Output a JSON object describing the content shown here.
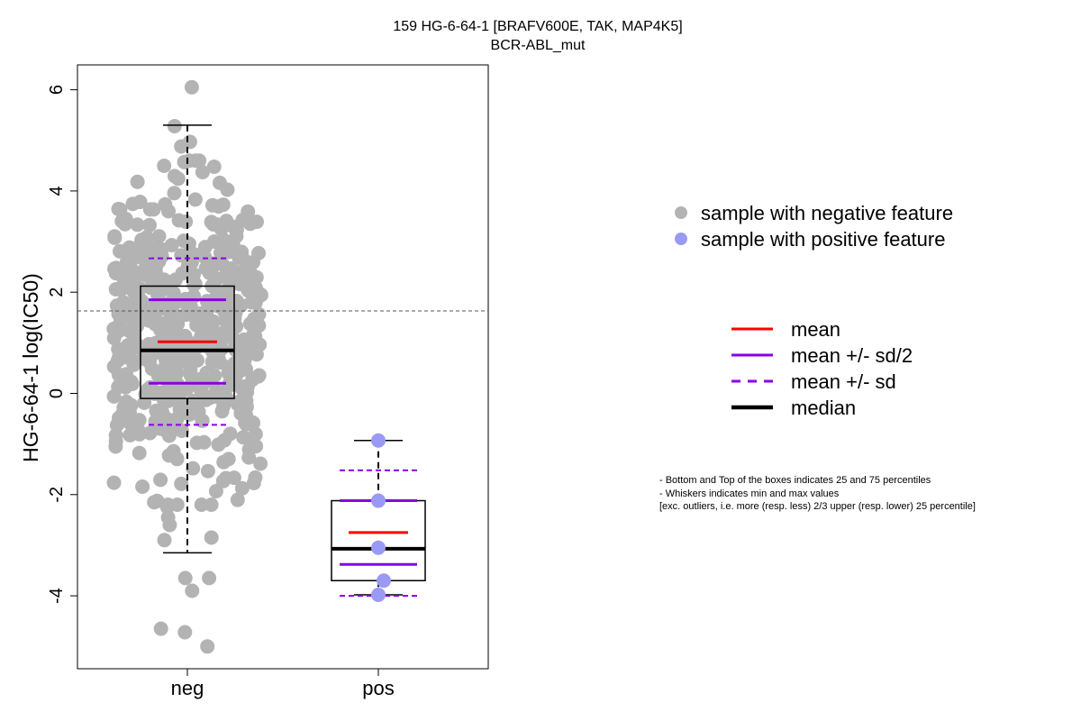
{
  "chart_data": {
    "type": "boxplot",
    "title": "159 HG-6-64-1 [BRAFV600E, TAK, MAP4K5]",
    "subtitle": "BCR-ABL_mut",
    "ylabel": "HG-6-64-1 log(IC50)",
    "ylim": [
      -5.4,
      6.5
    ],
    "yticks": [
      -4,
      -2,
      0,
      2,
      4,
      6
    ],
    "categories": [
      "neg",
      "pos"
    ],
    "reference_line": 1.63,
    "groups": [
      {
        "name": "neg",
        "point_color": "#b3b3b3",
        "whisker_low": -3.15,
        "q1": -0.1,
        "median": 0.85,
        "q3": 2.12,
        "whisker_high": 5.3,
        "mean": 1.02,
        "mean_minus_half_sd": 0.2,
        "mean_plus_half_sd": 1.85,
        "mean_minus_sd": -0.62,
        "mean_plus_sd": 2.67,
        "extra_points": [
          6.05,
          5.28,
          4.97,
          4.88,
          -3.65,
          -3.65,
          -3.9,
          -4.65,
          -4.72,
          -5.0,
          -2.85,
          -2.9,
          -2.6,
          -2.45,
          -2.25,
          -2.2,
          -2.15
        ],
        "n_points": 520
      },
      {
        "name": "pos",
        "point_color": "#9a9af5",
        "whisker_low": -3.98,
        "q1": -3.7,
        "median": -3.07,
        "q3": -2.12,
        "whisker_high": -0.93,
        "mean": -2.75,
        "mean_minus_half_sd": -3.38,
        "mean_plus_half_sd": -2.12,
        "mean_minus_sd": -4.0,
        "mean_plus_sd": -1.52,
        "points": [
          -0.93,
          -2.12,
          -3.05,
          -3.7,
          -3.98
        ]
      }
    ],
    "legend": {
      "points": [
        {
          "label": "sample with negative feature",
          "color": "#b3b3b3"
        },
        {
          "label": "sample with positive feature",
          "color": "#9a9af5"
        }
      ],
      "lines": [
        {
          "label": "mean",
          "color": "#ff0000",
          "style": "solid"
        },
        {
          "label": "mean +/- sd/2",
          "color": "#8a00e6",
          "style": "solid"
        },
        {
          "label": "mean +/- sd",
          "color": "#8a00e6",
          "style": "dashed"
        },
        {
          "label": "median",
          "color": "#000000",
          "style": "bold"
        }
      ]
    },
    "notes": [
      "- Bottom and Top of the boxes indicates 25 and 75 percentiles",
      "- Whiskers indicates min and max values",
      "[exc. outliers, i.e. more (resp. less) 2/3 upper (resp. lower) 25 percentile]"
    ]
  }
}
